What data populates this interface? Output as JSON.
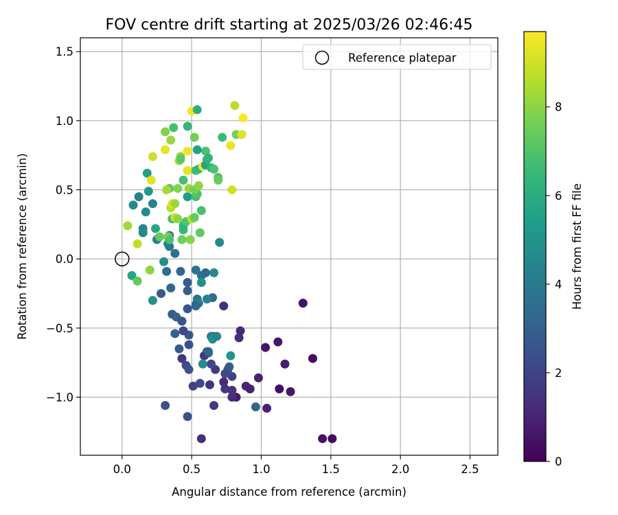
{
  "chart_data": {
    "type": "scatter",
    "title": "FOV centre drift starting at 2025/03/26 02:46:45",
    "xlabel": "Angular distance from reference (arcmin)",
    "ylabel": "Rotation from reference (arcmin)",
    "xlim": [
      -0.3,
      2.7
    ],
    "ylim": [
      -1.42,
      1.6
    ],
    "xticks": [
      0.0,
      0.5,
      1.0,
      1.5,
      2.0,
      2.5
    ],
    "xtick_labels": [
      "0.0",
      "0.5",
      "1.0",
      "1.5",
      "2.0",
      "2.5"
    ],
    "yticks": [
      -1.0,
      -0.5,
      0.0,
      0.5,
      1.0,
      1.5
    ],
    "ytick_labels": [
      "−1.0",
      "−0.5",
      "0.0",
      "0.5",
      "1.0",
      "1.5"
    ],
    "grid": true,
    "legend": {
      "placement": "upper right",
      "label": "Reference platepar"
    },
    "reference_point": {
      "x": 0.0,
      "y": 0.0
    },
    "colormap": "viridis",
    "colorbar": {
      "label": "Hours from first FF file",
      "min": 0,
      "max": 9.7,
      "ticks": [
        0,
        2,
        4,
        6,
        8
      ],
      "tick_labels": [
        "0",
        "2",
        "4",
        "6",
        "8"
      ]
    },
    "points": [
      {
        "x": 1.44,
        "y": -1.3,
        "t": 0.4
      },
      {
        "x": 1.51,
        "y": -1.3,
        "t": 0.3
      },
      {
        "x": 1.3,
        "y": -0.32,
        "t": 0.5
      },
      {
        "x": 1.37,
        "y": -0.72,
        "t": 0.3
      },
      {
        "x": 1.12,
        "y": -0.6,
        "t": 0.6
      },
      {
        "x": 1.17,
        "y": -0.76,
        "t": 0.8
      },
      {
        "x": 1.03,
        "y": -0.64,
        "t": 0.5
      },
      {
        "x": 0.98,
        "y": -0.86,
        "t": 0.9
      },
      {
        "x": 1.13,
        "y": -0.94,
        "t": 0.4
      },
      {
        "x": 1.21,
        "y": -0.96,
        "t": 0.6
      },
      {
        "x": 1.04,
        "y": -1.08,
        "t": 1.0
      },
      {
        "x": 0.96,
        "y": -1.07,
        "t": 3.1
      },
      {
        "x": 0.85,
        "y": -0.52,
        "t": 1.1
      },
      {
        "x": 0.84,
        "y": -0.57,
        "t": 1.2
      },
      {
        "x": 0.73,
        "y": -0.34,
        "t": 1.3
      },
      {
        "x": 0.89,
        "y": -0.92,
        "t": 1.0
      },
      {
        "x": 0.92,
        "y": -0.94,
        "t": 0.9
      },
      {
        "x": 0.82,
        "y": -1.0,
        "t": 0.7
      },
      {
        "x": 0.79,
        "y": -1.0,
        "t": 1.2
      },
      {
        "x": 0.79,
        "y": -0.95,
        "t": 1.5
      },
      {
        "x": 0.79,
        "y": -0.85,
        "t": 2.0
      },
      {
        "x": 0.77,
        "y": -0.78,
        "t": 3.0
      },
      {
        "x": 0.76,
        "y": -0.8,
        "t": 2.6
      },
      {
        "x": 0.74,
        "y": -0.83,
        "t": 2.2
      },
      {
        "x": 0.73,
        "y": -0.89,
        "t": 1.1
      },
      {
        "x": 0.74,
        "y": -0.94,
        "t": 1.5
      },
      {
        "x": 0.66,
        "y": -1.06,
        "t": 1.7
      },
      {
        "x": 0.57,
        "y": -1.3,
        "t": 1.3
      },
      {
        "x": 0.47,
        "y": -1.14,
        "t": 2.4
      },
      {
        "x": 0.31,
        "y": -1.06,
        "t": 2.5
      },
      {
        "x": 0.51,
        "y": -0.92,
        "t": 1.9
      },
      {
        "x": 0.56,
        "y": -0.9,
        "t": 2.2
      },
      {
        "x": 0.63,
        "y": -0.91,
        "t": 1.4
      },
      {
        "x": 0.67,
        "y": -0.8,
        "t": 1.6
      },
      {
        "x": 0.64,
        "y": -0.76,
        "t": 2.1
      },
      {
        "x": 0.61,
        "y": -0.67,
        "t": 2.5
      },
      {
        "x": 0.62,
        "y": -0.68,
        "t": 2.8
      },
      {
        "x": 0.59,
        "y": -0.7,
        "t": 1.7
      },
      {
        "x": 0.58,
        "y": -0.76,
        "t": 4.7
      },
      {
        "x": 0.48,
        "y": -0.8,
        "t": 2.6
      },
      {
        "x": 0.46,
        "y": -0.77,
        "t": 2.3
      },
      {
        "x": 0.43,
        "y": -0.72,
        "t": 1.6
      },
      {
        "x": 0.41,
        "y": -0.65,
        "t": 2.8
      },
      {
        "x": 0.48,
        "y": -0.62,
        "t": 2.4
      },
      {
        "x": 0.48,
        "y": -0.55,
        "t": 2.7
      },
      {
        "x": 0.44,
        "y": -0.52,
        "t": 2.2
      },
      {
        "x": 0.38,
        "y": -0.54,
        "t": 3.0
      },
      {
        "x": 0.36,
        "y": -0.4,
        "t": 2.9
      },
      {
        "x": 0.39,
        "y": -0.42,
        "t": 3.1
      },
      {
        "x": 0.43,
        "y": -0.45,
        "t": 2.6
      },
      {
        "x": 0.47,
        "y": -0.36,
        "t": 2.6
      },
      {
        "x": 0.53,
        "y": -0.33,
        "t": 2.7
      },
      {
        "x": 0.47,
        "y": -0.23,
        "t": 2.9
      },
      {
        "x": 0.47,
        "y": -0.17,
        "t": 2.8
      },
      {
        "x": 0.35,
        "y": -0.21,
        "t": 3.2
      },
      {
        "x": 0.28,
        "y": -0.25,
        "t": 2.7
      },
      {
        "x": 0.42,
        "y": -0.09,
        "t": 3.2
      },
      {
        "x": 0.32,
        "y": -0.09,
        "t": 3.4
      },
      {
        "x": 0.53,
        "y": -0.08,
        "t": 3.8
      },
      {
        "x": 0.57,
        "y": -0.12,
        "t": 3.5
      },
      {
        "x": 0.6,
        "y": -0.1,
        "t": 3.3
      },
      {
        "x": 0.57,
        "y": -0.17,
        "t": 4.8
      },
      {
        "x": 0.66,
        "y": -0.1,
        "t": 4.6
      },
      {
        "x": 0.65,
        "y": -0.28,
        "t": 3.4
      },
      {
        "x": 0.61,
        "y": -0.29,
        "t": 4.3
      },
      {
        "x": 0.54,
        "y": -0.29,
        "t": 3.7
      },
      {
        "x": 0.55,
        "y": -0.32,
        "t": 4.1
      },
      {
        "x": 0.53,
        "y": -0.34,
        "t": 3.3
      },
      {
        "x": 0.64,
        "y": -0.56,
        "t": 4.0
      },
      {
        "x": 0.66,
        "y": -0.56,
        "t": 3.8
      },
      {
        "x": 0.65,
        "y": -0.58,
        "t": 4.9
      },
      {
        "x": 0.68,
        "y": -0.56,
        "t": 4.4
      },
      {
        "x": 0.78,
        "y": -0.7,
        "t": 5.0
      },
      {
        "x": 0.62,
        "y": -0.67,
        "t": 3.2
      },
      {
        "x": 0.22,
        "y": -0.3,
        "t": 5.0
      },
      {
        "x": 0.3,
        "y": -0.02,
        "t": 4.8
      },
      {
        "x": 0.38,
        "y": 0.04,
        "t": 3.5
      },
      {
        "x": 0.34,
        "y": 0.09,
        "t": 3.9
      },
      {
        "x": 0.33,
        "y": 0.11,
        "t": 4.2
      },
      {
        "x": 0.34,
        "y": 0.17,
        "t": 3.6
      },
      {
        "x": 0.25,
        "y": 0.14,
        "t": 4.3
      },
      {
        "x": 0.24,
        "y": 0.22,
        "t": 5.8
      },
      {
        "x": 0.15,
        "y": 0.22,
        "t": 4.4
      },
      {
        "x": 0.15,
        "y": 0.19,
        "t": 4.6
      },
      {
        "x": 0.07,
        "y": -0.12,
        "t": 5.7
      },
      {
        "x": 0.11,
        "y": -0.16,
        "t": 7.3
      },
      {
        "x": 0.2,
        "y": -0.08,
        "t": 8.0
      },
      {
        "x": 0.08,
        "y": 0.39,
        "t": 4.6
      },
      {
        "x": 0.12,
        "y": 0.45,
        "t": 4.3
      },
      {
        "x": 0.17,
        "y": 0.34,
        "t": 4.6
      },
      {
        "x": 0.22,
        "y": 0.4,
        "t": 4.4
      },
      {
        "x": 0.19,
        "y": 0.49,
        "t": 5.2
      },
      {
        "x": 0.18,
        "y": 0.62,
        "t": 5.6
      },
      {
        "x": 0.04,
        "y": 0.24,
        "t": 8.3
      },
      {
        "x": 0.11,
        "y": 0.11,
        "t": 8.8
      },
      {
        "x": 0.27,
        "y": 0.16,
        "t": 7.4
      },
      {
        "x": 0.33,
        "y": 0.16,
        "t": 7.8
      },
      {
        "x": 0.34,
        "y": 0.14,
        "t": 6.9
      },
      {
        "x": 0.43,
        "y": 0.14,
        "t": 7.5
      },
      {
        "x": 0.49,
        "y": 0.14,
        "t": 7.9
      },
      {
        "x": 0.44,
        "y": 0.21,
        "t": 6.5
      },
      {
        "x": 0.44,
        "y": 0.24,
        "t": 6.3
      },
      {
        "x": 0.46,
        "y": 0.27,
        "t": 7.0
      },
      {
        "x": 0.5,
        "y": 0.29,
        "t": 8.6
      },
      {
        "x": 0.52,
        "y": 0.3,
        "t": 7.4
      },
      {
        "x": 0.56,
        "y": 0.19,
        "t": 7.3
      },
      {
        "x": 0.57,
        "y": 0.35,
        "t": 6.8
      },
      {
        "x": 0.36,
        "y": 0.29,
        "t": 6.8
      },
      {
        "x": 0.38,
        "y": 0.3,
        "t": 9.0
      },
      {
        "x": 0.4,
        "y": 0.29,
        "t": 8.0
      },
      {
        "x": 0.35,
        "y": 0.37,
        "t": 8.6
      },
      {
        "x": 0.36,
        "y": 0.4,
        "t": 9.2
      },
      {
        "x": 0.38,
        "y": 0.4,
        "t": 8.2
      },
      {
        "x": 0.34,
        "y": 0.51,
        "t": 7.2
      },
      {
        "x": 0.32,
        "y": 0.5,
        "t": 8.4
      },
      {
        "x": 0.4,
        "y": 0.51,
        "t": 7.8
      },
      {
        "x": 0.44,
        "y": 0.57,
        "t": 6.8
      },
      {
        "x": 0.47,
        "y": 0.45,
        "t": 5.3
      },
      {
        "x": 0.53,
        "y": 0.45,
        "t": 6.8
      },
      {
        "x": 0.54,
        "y": 0.47,
        "t": 7.0
      },
      {
        "x": 0.48,
        "y": 0.51,
        "t": 8.2
      },
      {
        "x": 0.52,
        "y": 0.5,
        "t": 7.6
      },
      {
        "x": 0.55,
        "y": 0.53,
        "t": 8.0
      },
      {
        "x": 0.47,
        "y": 0.64,
        "t": 9.4
      },
      {
        "x": 0.53,
        "y": 0.64,
        "t": 6.7
      },
      {
        "x": 0.55,
        "y": 0.65,
        "t": 6.5
      },
      {
        "x": 0.58,
        "y": 0.67,
        "t": 9.6
      },
      {
        "x": 0.6,
        "y": 0.68,
        "t": 5.6
      },
      {
        "x": 0.61,
        "y": 0.72,
        "t": 6.2
      },
      {
        "x": 0.64,
        "y": 0.66,
        "t": 6.4
      },
      {
        "x": 0.66,
        "y": 0.65,
        "t": 6.9
      },
      {
        "x": 0.69,
        "y": 0.59,
        "t": 7.0
      },
      {
        "x": 0.69,
        "y": 0.57,
        "t": 7.4
      },
      {
        "x": 0.7,
        "y": 0.12,
        "t": 4.5
      },
      {
        "x": 0.6,
        "y": 0.78,
        "t": 6.9
      },
      {
        "x": 0.62,
        "y": 0.73,
        "t": 6.3
      },
      {
        "x": 0.54,
        "y": 0.79,
        "t": 5.6
      },
      {
        "x": 0.47,
        "y": 0.78,
        "t": 9.5
      },
      {
        "x": 0.42,
        "y": 0.74,
        "t": 7.9
      },
      {
        "x": 0.41,
        "y": 0.71,
        "t": 8.4
      },
      {
        "x": 0.42,
        "y": 0.72,
        "t": 7.2
      },
      {
        "x": 0.35,
        "y": 0.86,
        "t": 8.2
      },
      {
        "x": 0.31,
        "y": 0.79,
        "t": 9.4
      },
      {
        "x": 0.22,
        "y": 0.74,
        "t": 9.0
      },
      {
        "x": 0.21,
        "y": 0.57,
        "t": 9.3
      },
      {
        "x": 0.31,
        "y": 0.92,
        "t": 7.8
      },
      {
        "x": 0.37,
        "y": 0.95,
        "t": 6.8
      },
      {
        "x": 0.47,
        "y": 0.96,
        "t": 6.4
      },
      {
        "x": 0.52,
        "y": 0.88,
        "t": 7.6
      },
      {
        "x": 0.5,
        "y": 1.07,
        "t": 9.6
      },
      {
        "x": 0.54,
        "y": 1.08,
        "t": 6.1
      },
      {
        "x": 0.72,
        "y": 0.88,
        "t": 6.6
      },
      {
        "x": 0.78,
        "y": 0.82,
        "t": 9.4
      },
      {
        "x": 0.82,
        "y": 0.9,
        "t": 7.7
      },
      {
        "x": 0.86,
        "y": 0.9,
        "t": 9.2
      },
      {
        "x": 0.81,
        "y": 1.11,
        "t": 8.7
      },
      {
        "x": 0.87,
        "y": 1.02,
        "t": 9.7
      },
      {
        "x": 0.79,
        "y": 0.5,
        "t": 9.0
      }
    ]
  }
}
